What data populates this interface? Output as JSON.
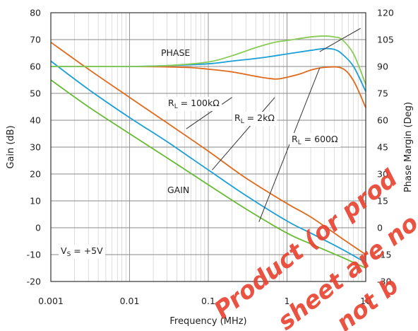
{
  "chart_data": {
    "type": "line",
    "xlabel": "Frequency (MHz)",
    "ylabel": "Gain (dB)",
    "y2label": "Phase Margin (Deg)",
    "xscale": "log",
    "xlim": [
      0.001,
      10
    ],
    "ylim": [
      -20,
      80
    ],
    "y2lim": [
      -30,
      120
    ],
    "x_ticks": [
      "0.001",
      "0.01",
      "0.1",
      "1",
      "10"
    ],
    "y_ticks": [
      "80",
      "70",
      "60",
      "50",
      "40",
      "30",
      "20",
      "10",
      "0",
      "-10",
      "-20"
    ],
    "y2_ticks": [
      "120",
      "105",
      "90",
      "75",
      "60",
      "45",
      "30",
      "15",
      "0",
      "-15",
      "-30"
    ],
    "grid": true,
    "series": [
      {
        "axis": "gain",
        "color": "#e06a1a",
        "x": [
          0.001,
          0.003,
          0.01,
          0.03,
          0.1,
          0.3,
          1,
          2,
          5,
          10
        ],
        "y": [
          69,
          59,
          48.5,
          39,
          28.5,
          18.5,
          9,
          4,
          -4,
          -10
        ]
      },
      {
        "axis": "gain",
        "color": "#1a9fd6",
        "x": [
          0.001,
          0.003,
          0.01,
          0.03,
          0.1,
          0.3,
          1,
          2,
          5,
          10
        ],
        "y": [
          62,
          51.5,
          41,
          32,
          21.5,
          12,
          2.5,
          -2,
          -8,
          -13
        ]
      },
      {
        "axis": "gain",
        "color": "#66bb33",
        "x": [
          0.001,
          0.003,
          0.01,
          0.03,
          0.1,
          0.3,
          1,
          2,
          5,
          10
        ],
        "y": [
          55,
          45,
          35,
          26,
          16,
          7,
          -2,
          -6,
          -11,
          -15
        ]
      },
      {
        "axis": "phase",
        "color": "#e06a1a",
        "x": [
          0.001,
          0.01,
          0.05,
          0.1,
          0.2,
          0.4,
          0.7,
          1,
          1.5,
          2,
          3,
          5,
          7,
          10
        ],
        "y": [
          90,
          90,
          89.5,
          88.5,
          87,
          84.5,
          83,
          84,
          86,
          88,
          89.5,
          89,
          82,
          67
        ]
      },
      {
        "axis": "phase",
        "color": "#1a9fd6",
        "x": [
          0.001,
          0.01,
          0.03,
          0.1,
          0.2,
          0.5,
          1,
          2,
          3,
          4,
          5,
          7,
          10
        ],
        "y": [
          90,
          90,
          90.5,
          91.5,
          93,
          95,
          97,
          99,
          100,
          99.5,
          97,
          90,
          76
        ]
      },
      {
        "axis": "phase",
        "color": "#88cc55",
        "x": [
          0.001,
          0.01,
          0.03,
          0.1,
          0.2,
          0.4,
          0.7,
          1,
          2,
          3,
          4,
          5,
          7,
          10
        ],
        "y": [
          90,
          90,
          90.5,
          92.5,
          96,
          100.5,
          103.5,
          104.5,
          106.5,
          107,
          106.5,
          105,
          97,
          80
        ]
      }
    ],
    "annotations": [
      {
        "text": "PHASE"
      },
      {
        "text": "GAIN"
      },
      {
        "text": "R",
        "sub": "L",
        "rest": " = 100kΩ"
      },
      {
        "text": "R",
        "sub": "L",
        "rest": " = 2kΩ"
      },
      {
        "text": "R",
        "sub": "L",
        "rest": " = 600Ω"
      },
      {
        "text": "V",
        "sub": "S",
        "rest": " = +5V"
      }
    ],
    "watermark": [
      "Product (or prod",
      "sheet are no",
      "not b"
    ]
  }
}
